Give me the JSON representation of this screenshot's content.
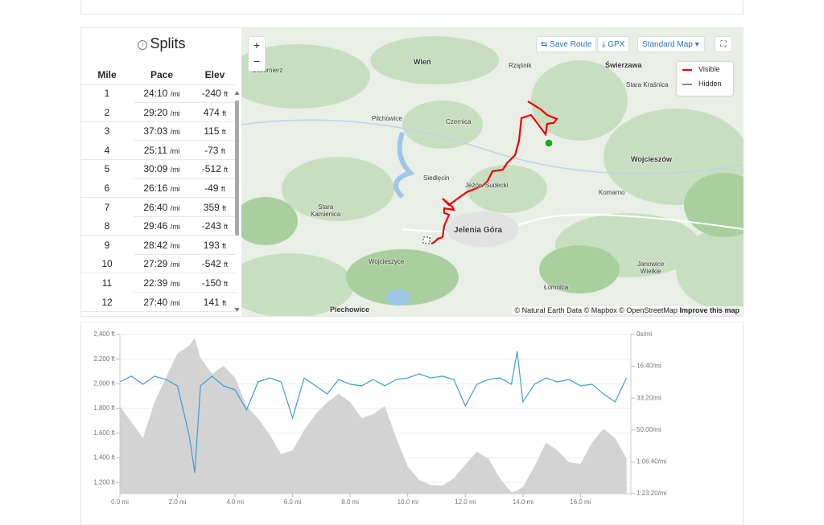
{
  "splits": {
    "title": "Splits",
    "columns": [
      "Mile",
      "Pace",
      "Elev"
    ],
    "pace_unit": "/mi",
    "elev_unit": "ft",
    "rows": [
      [
        "1",
        "24:10",
        "-240"
      ],
      [
        "2",
        "29:20",
        "474"
      ],
      [
        "3",
        "37:03",
        "115"
      ],
      [
        "4",
        "25:11",
        "-73"
      ],
      [
        "5",
        "30:09",
        "-512"
      ],
      [
        "6",
        "26:16",
        "-49"
      ],
      [
        "7",
        "26:40",
        "359"
      ],
      [
        "8",
        "29:46",
        "-243"
      ],
      [
        "9",
        "28:42",
        "193"
      ],
      [
        "10",
        "27:29",
        "-542"
      ],
      [
        "11",
        "22:39",
        "-150"
      ],
      [
        "12",
        "27:40",
        "141"
      ]
    ]
  },
  "map": {
    "buttons": [
      "Save Route",
      "GPX",
      "Standard Map"
    ],
    "legend": [
      "Visible",
      "Hidden"
    ],
    "labels": [
      "Lubomierz",
      "Wleń",
      "Rząśnik",
      "Świerzawa",
      "Stara Kraśnica",
      "Pilchowice",
      "Czernica",
      "Siedlęcin",
      "Jeżów Sudecki",
      "Wojcieszów",
      "Komarno",
      "Stara Kamienica",
      "Jelenia Góra",
      "Wojcieszyce",
      "Janowice Wielkie",
      "Łomnica",
      "Piechowice"
    ],
    "attribution": "© Natural Earth Data © Mapbox © OpenStreetMap",
    "improve": "Improve this map"
  },
  "chart_data": {
    "type": "line",
    "x": [
      0,
      0.4,
      0.8,
      1.2,
      1.6,
      2.0,
      2.4,
      2.6,
      2.8,
      3.2,
      3.6,
      4.0,
      4.4,
      4.8,
      5.2,
      5.6,
      6.0,
      6.4,
      6.8,
      7.2,
      7.6,
      8.0,
      8.4,
      8.8,
      9.2,
      9.6,
      10.0,
      10.4,
      10.8,
      11.2,
      11.6,
      12.0,
      12.4,
      12.8,
      13.2,
      13.6,
      13.8,
      14.0,
      14.4,
      14.8,
      15.2,
      15.6,
      16.0,
      16.4,
      16.8,
      17.2,
      17.6
    ],
    "series": [
      {
        "kind": "area",
        "color": "#d3d3d3",
        "values": [
          1820,
          1690,
          1560,
          1850,
          2050,
          2245,
          2310,
          2370,
          2210,
          2080,
          2145,
          2050,
          1820,
          1720,
          1590,
          1430,
          1460,
          1625,
          1755,
          1850,
          1920,
          1850,
          1720,
          1755,
          1820,
          1560,
          1330,
          1220,
          1180,
          1175,
          1235,
          1345,
          1450,
          1395,
          1235,
          1120,
          1135,
          1165,
          1330,
          1525,
          1460,
          1365,
          1350,
          1525,
          1635,
          1560,
          1395
        ]
      },
      {
        "kind": "line",
        "axis": "y2",
        "color": "#3a9fd6",
        "values": [
          1490,
          1310,
          1565,
          1310,
          1415,
          1615,
          3130,
          4340,
          1615,
          1310,
          1615,
          1740,
          2370,
          1490,
          1365,
          1490,
          2625,
          1365,
          1615,
          1870,
          1415,
          1565,
          1615,
          1415,
          1615,
          1415,
          1365,
          1235,
          1365,
          1310,
          1415,
          2245,
          1565,
          1415,
          1365,
          1565,
          530,
          2120,
          1565,
          1365,
          1490,
          1415,
          1615,
          1565,
          1870,
          2120,
          1365
        ]
      }
    ],
    "xlim": [
      0,
      17.75
    ],
    "xticks": [
      {
        "value": 0,
        "label": "0.0 mi"
      },
      {
        "value": 2,
        "label": "2.0 mi"
      },
      {
        "value": 4,
        "label": "4.0 mi"
      },
      {
        "value": 6,
        "label": "6.0 mi"
      },
      {
        "value": 8,
        "label": "8.0 mi"
      },
      {
        "value": 10,
        "label": "10.0 mi"
      },
      {
        "value": 12,
        "label": "12.0 mi"
      },
      {
        "value": 14,
        "label": "14.0 mi"
      },
      {
        "value": 16,
        "label": "16.0 mi"
      }
    ],
    "ylim": [
      1110,
      2400
    ],
    "yticks": [
      {
        "value": 1200,
        "label": "1,200 ft"
      },
      {
        "value": 1400,
        "label": "1,400 ft"
      },
      {
        "value": 1600,
        "label": "1,600 ft"
      },
      {
        "value": 1800,
        "label": "1,800 ft"
      },
      {
        "value": 2000,
        "label": "2,000 ft"
      },
      {
        "value": 2200,
        "label": "2,200 ft"
      },
      {
        "value": 2400,
        "label": "2,400 ft"
      }
    ],
    "y2lim": [
      5000,
      0
    ],
    "y2ticks": [
      {
        "value": 0,
        "label": "0s/mi"
      },
      {
        "value": 1000,
        "label": "16:40/mi"
      },
      {
        "value": 2000,
        "label": "33:20/mi"
      },
      {
        "value": 3000,
        "label": "50:00/mi"
      },
      {
        "value": 4000,
        "label": "1:06:40/mi"
      },
      {
        "value": 5000,
        "label": "1:23:20/mi"
      }
    ],
    "grid": true
  }
}
